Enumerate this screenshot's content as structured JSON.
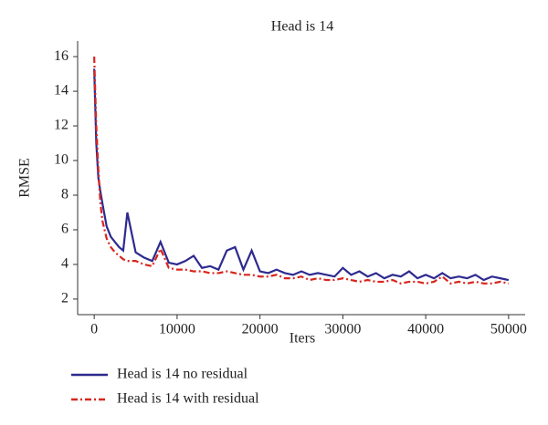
{
  "chart_data": {
    "type": "line",
    "title": "Head is 14",
    "x_label": "Iters",
    "y_label": "RMSE",
    "x": [
      0,
      250,
      500,
      750,
      1000,
      1500,
      2000,
      2500,
      3000,
      3500,
      4000,
      5000,
      6000,
      7000,
      8000,
      9000,
      10000,
      11000,
      12000,
      13000,
      14000,
      15000,
      16000,
      17000,
      18000,
      19000,
      20000,
      21000,
      22000,
      23000,
      24000,
      25000,
      26000,
      27000,
      28000,
      29000,
      30000,
      31000,
      32000,
      33000,
      34000,
      35000,
      36000,
      37000,
      38000,
      39000,
      40000,
      41000,
      42000,
      43000,
      44000,
      45000,
      46000,
      47000,
      48000,
      49000,
      50000
    ],
    "series": [
      {
        "name": "Head is 14 no residual",
        "color": "#2e2a8f",
        "style": "solid",
        "values": [
          15.3,
          11,
          9,
          8.2,
          7.5,
          6.2,
          5.6,
          5.3,
          5.0,
          4.8,
          7.0,
          4.7,
          4.4,
          4.2,
          5.3,
          4.1,
          4.0,
          4.2,
          4.5,
          3.8,
          3.9,
          3.7,
          4.8,
          5.0,
          3.7,
          4.8,
          3.6,
          3.5,
          3.7,
          3.5,
          3.4,
          3.6,
          3.4,
          3.5,
          3.4,
          3.3,
          3.8,
          3.4,
          3.6,
          3.3,
          3.5,
          3.2,
          3.4,
          3.3,
          3.6,
          3.2,
          3.4,
          3.2,
          3.5,
          3.2,
          3.3,
          3.2,
          3.4,
          3.1,
          3.3,
          3.2,
          3.1
        ]
      },
      {
        "name": "Head is 14 with residual",
        "color": "#d7261e",
        "style": "dashdot",
        "values": [
          16.0,
          12,
          9.5,
          7.5,
          6.5,
          5.5,
          5.0,
          4.7,
          4.5,
          4.3,
          4.2,
          4.2,
          4.0,
          3.9,
          4.9,
          3.8,
          3.7,
          3.7,
          3.6,
          3.6,
          3.5,
          3.5,
          3.6,
          3.5,
          3.4,
          3.4,
          3.3,
          3.3,
          3.4,
          3.2,
          3.2,
          3.3,
          3.1,
          3.2,
          3.1,
          3.1,
          3.2,
          3.1,
          3.0,
          3.1,
          3.0,
          3.0,
          3.1,
          2.9,
          3.0,
          3.0,
          2.9,
          3.0,
          3.3,
          2.9,
          3.0,
          2.9,
          3.0,
          2.9,
          2.9,
          3.0,
          2.9
        ]
      }
    ],
    "xlim": [
      -2000,
      52000
    ],
    "xticks": [
      0,
      10000,
      20000,
      30000,
      40000,
      50000
    ],
    "ylim": [
      1.1,
      16.9
    ],
    "yticks": [
      2,
      4,
      6,
      8,
      10,
      12,
      14,
      16
    ],
    "legend": "below"
  }
}
